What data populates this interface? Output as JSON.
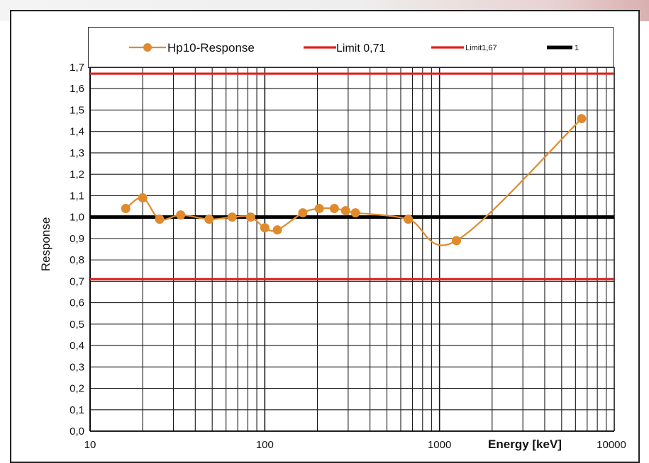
{
  "chart_data": {
    "type": "line",
    "title": "",
    "xlabel": "Energy [keV]",
    "ylabel": "Response",
    "x_scale": "log",
    "xlim": [
      10,
      10000
    ],
    "ylim": [
      0,
      1.7
    ],
    "x_ticks": [
      10,
      100,
      1000,
      10000
    ],
    "x_tick_labels": [
      "10",
      "100",
      "1000",
      "10000"
    ],
    "y_ticks": [
      0,
      0.1,
      0.2,
      0.3,
      0.4,
      0.5,
      0.6,
      0.7,
      0.8,
      0.9,
      1.0,
      1.1,
      1.2,
      1.3,
      1.4,
      1.5,
      1.6,
      1.7
    ],
    "y_tick_labels": [
      "0,0",
      "0,1",
      "0,2",
      "0,3",
      "0,4",
      "0,5",
      "0,6",
      "0,7",
      "0,8",
      "0,9",
      "1,0",
      "1,1",
      "1,2",
      "1,3",
      "1,4",
      "1,5",
      "1,6",
      "1,7"
    ],
    "grid": true,
    "legend_position": "top",
    "series": [
      {
        "name": "Hp10-Response",
        "color": "#e08a2c",
        "marker": "circle",
        "smooth": true,
        "x": [
          16,
          20,
          25,
          33,
          48,
          65,
          83,
          100,
          118,
          165,
          205,
          250,
          290,
          330,
          662,
          1250,
          6500
        ],
        "y": [
          1.04,
          1.09,
          0.99,
          1.01,
          0.99,
          1.0,
          1.0,
          0.95,
          0.94,
          1.02,
          1.04,
          1.04,
          1.03,
          1.02,
          0.99,
          0.89,
          1.46
        ]
      },
      {
        "name": "Limit 0,71",
        "color": "#e02020",
        "constant": 0.71
      },
      {
        "name": "Limit1,67",
        "color": "#e02020",
        "constant": 1.67
      },
      {
        "name": "1",
        "color": "#000000",
        "constant": 1.0
      }
    ]
  }
}
